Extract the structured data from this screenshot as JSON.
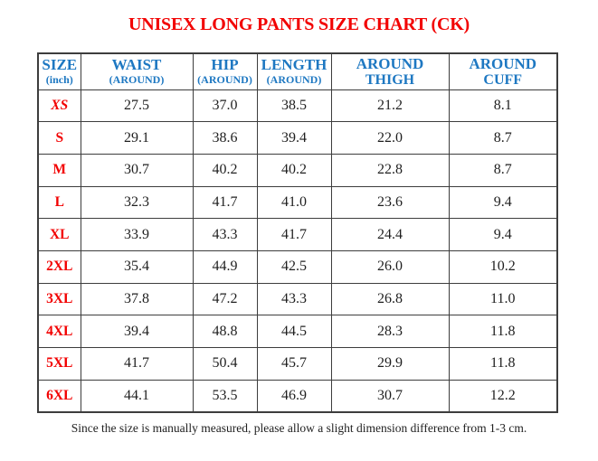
{
  "page": {
    "title": "UNISEX LONG PANTS SIZE CHART (CK)",
    "footnote": "Since the size is manually measured, please allow a slight dimension difference from 1-3 cm."
  },
  "colors": {
    "title_red": "#f20000",
    "header_blue": "#1e78c2",
    "size_label_red": "#f20000",
    "value_text": "#1f1f1f",
    "table_border": "#3d3d3d"
  },
  "table": {
    "unit": "inch",
    "columns": [
      {
        "line1": "SIZE",
        "line2": "(inch)"
      },
      {
        "line1": "WAIST",
        "line2": "(AROUND)"
      },
      {
        "line1": "HIP",
        "line2": "(AROUND)"
      },
      {
        "line1": "LENGTH",
        "line2": "(AROUND)"
      },
      {
        "line1": "AROUND",
        "line2": "THIGH"
      },
      {
        "line1": "AROUND",
        "line2": "CUFF"
      }
    ],
    "rows": [
      {
        "size": "XS",
        "italic": true,
        "values": [
          "27.5",
          "37.0",
          "38.5",
          "21.2",
          "8.1"
        ]
      },
      {
        "size": "S",
        "italic": false,
        "values": [
          "29.1",
          "38.6",
          "39.4",
          "22.0",
          "8.7"
        ]
      },
      {
        "size": "M",
        "italic": false,
        "values": [
          "30.7",
          "40.2",
          "40.2",
          "22.8",
          "8.7"
        ]
      },
      {
        "size": "L",
        "italic": false,
        "values": [
          "32.3",
          "41.7",
          "41.0",
          "23.6",
          "9.4"
        ]
      },
      {
        "size": "XL",
        "italic": false,
        "values": [
          "33.9",
          "43.3",
          "41.7",
          "24.4",
          "9.4"
        ]
      },
      {
        "size": "2XL",
        "italic": false,
        "values": [
          "35.4",
          "44.9",
          "42.5",
          "26.0",
          "10.2"
        ]
      },
      {
        "size": "3XL",
        "italic": false,
        "values": [
          "37.8",
          "47.2",
          "43.3",
          "26.8",
          "11.0"
        ]
      },
      {
        "size": "4XL",
        "italic": false,
        "values": [
          "39.4",
          "48.8",
          "44.5",
          "28.3",
          "11.8"
        ]
      },
      {
        "size": "5XL",
        "italic": false,
        "values": [
          "41.7",
          "50.4",
          "45.7",
          "29.9",
          "11.8"
        ]
      },
      {
        "size": "6XL",
        "italic": false,
        "values": [
          "44.1",
          "53.5",
          "46.9",
          "30.7",
          "12.2"
        ]
      }
    ]
  }
}
